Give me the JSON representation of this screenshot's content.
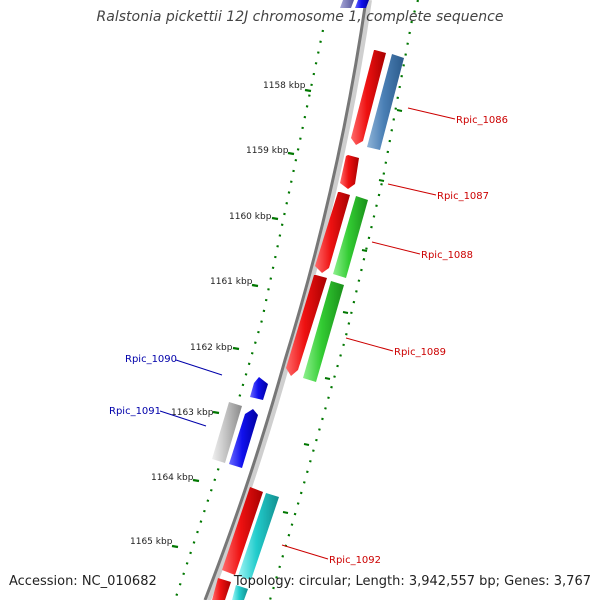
{
  "title": "Ralstonia pickettii 12J chromosome 1, complete sequence",
  "accession": "Accession: NC_010682",
  "topology": "Topology: circular; Length: 3,942,557 bp; Genes: 3,767",
  "ticks": [
    "1158 kbp",
    "1159 kbp",
    "1160 kbp",
    "1161 kbp",
    "1162 kbp",
    "1163 kbp",
    "1164 kbp",
    "1165 kbp"
  ],
  "genes_forward": [
    "Rpic_1086",
    "Rpic_1087",
    "Rpic_1088",
    "Rpic_1089",
    "Rpic_1092"
  ],
  "genes_reverse": [
    "Rpic_1090",
    "Rpic_1091"
  ],
  "colors": {
    "red": "#ee1111",
    "steelblue": "#4a7fb5",
    "green": "#33cc33",
    "blue": "#1111ee",
    "gray": "#b8b8b8",
    "cyan": "#22cccc",
    "forward_label": "#cc0000",
    "reverse_label": "#0000aa",
    "tick": "#007700"
  }
}
